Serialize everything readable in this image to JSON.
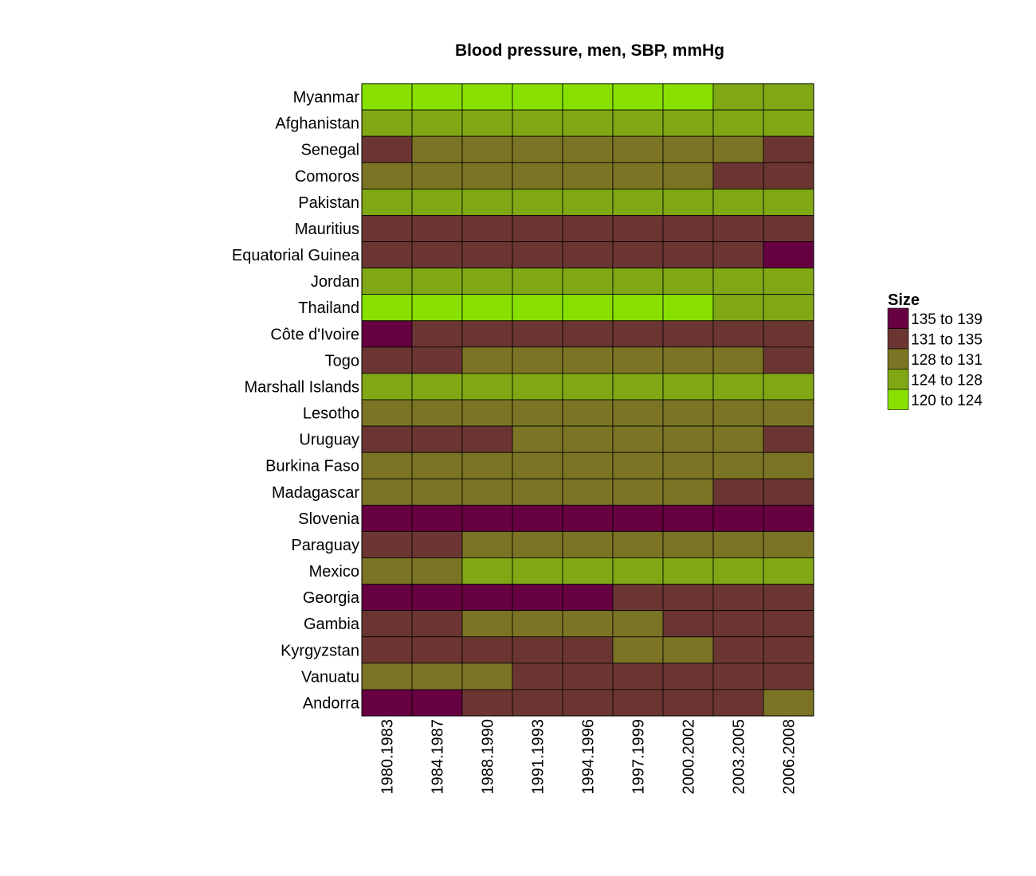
{
  "chart_data": {
    "type": "heatmap",
    "title": "Blood pressure, men, SBP, mmHg",
    "xlabel": "",
    "ylabel": "",
    "columns": [
      "1980.1983",
      "1984.1987",
      "1988.1990",
      "1991.1993",
      "1994.1996",
      "1997.1999",
      "2000.2002",
      "2003.2005",
      "2006.2008"
    ],
    "rows": [
      "Myanmar",
      "Afghanistan",
      "Senegal",
      "Comoros",
      "Pakistan",
      "Mauritius",
      "Equatorial Guinea",
      "Jordan",
      "Thailand",
      "Côte d'Ivoire",
      "Togo",
      "Marshall Islands",
      "Lesotho",
      "Uruguay",
      "Burkina Faso",
      "Madagascar",
      "Slovenia",
      "Paraguay",
      "Mexico",
      "Georgia",
      "Gambia",
      "Kyrgyzstan",
      "Vanuatu",
      "Andorra"
    ],
    "legend": {
      "title": "Size",
      "placement": "right",
      "bins": [
        {
          "label": "135 to 139",
          "color": "#660040"
        },
        {
          "label": "131 to 135",
          "color": "#6b3632"
        },
        {
          "label": "128 to 131",
          "color": "#7a7424"
        },
        {
          "label": "124 to 128",
          "color": "#80a814"
        },
        {
          "label": "120 to 124",
          "color": "#88e000"
        }
      ]
    },
    "bin_index_legend": "0 = 135 to 139, 1 = 131 to 135, 2 = 128 to 131, 3 = 124 to 128, 4 = 120 to 124",
    "cells": [
      [
        4,
        4,
        4,
        4,
        4,
        4,
        4,
        3,
        3
      ],
      [
        3,
        3,
        3,
        3,
        3,
        3,
        3,
        3,
        3
      ],
      [
        1,
        2,
        2,
        2,
        2,
        2,
        2,
        2,
        1
      ],
      [
        2,
        2,
        2,
        2,
        2,
        2,
        2,
        1,
        1
      ],
      [
        3,
        3,
        3,
        3,
        3,
        3,
        3,
        3,
        3
      ],
      [
        1,
        1,
        1,
        1,
        1,
        1,
        1,
        1,
        1
      ],
      [
        1,
        1,
        1,
        1,
        1,
        1,
        1,
        1,
        0
      ],
      [
        3,
        3,
        3,
        3,
        3,
        3,
        3,
        3,
        3
      ],
      [
        4,
        4,
        4,
        4,
        4,
        4,
        4,
        3,
        3
      ],
      [
        0,
        1,
        1,
        1,
        1,
        1,
        1,
        1,
        1
      ],
      [
        1,
        1,
        2,
        2,
        2,
        2,
        2,
        2,
        1
      ],
      [
        3,
        3,
        3,
        3,
        3,
        3,
        3,
        3,
        3
      ],
      [
        2,
        2,
        2,
        2,
        2,
        2,
        2,
        2,
        2
      ],
      [
        1,
        1,
        1,
        2,
        2,
        2,
        2,
        2,
        1
      ],
      [
        2,
        2,
        2,
        2,
        2,
        2,
        2,
        2,
        2
      ],
      [
        2,
        2,
        2,
        2,
        2,
        2,
        2,
        1,
        1
      ],
      [
        0,
        0,
        0,
        0,
        0,
        0,
        0,
        0,
        0
      ],
      [
        1,
        1,
        2,
        2,
        2,
        2,
        2,
        2,
        2
      ],
      [
        2,
        2,
        3,
        3,
        3,
        3,
        3,
        3,
        3
      ],
      [
        0,
        0,
        0,
        0,
        0,
        1,
        1,
        1,
        1
      ],
      [
        1,
        1,
        2,
        2,
        2,
        2,
        1,
        1,
        1
      ],
      [
        1,
        1,
        1,
        1,
        1,
        2,
        2,
        1,
        1
      ],
      [
        2,
        2,
        2,
        1,
        1,
        1,
        1,
        1,
        1
      ],
      [
        0,
        0,
        1,
        1,
        1,
        1,
        1,
        1,
        2
      ]
    ],
    "grid": true
  }
}
